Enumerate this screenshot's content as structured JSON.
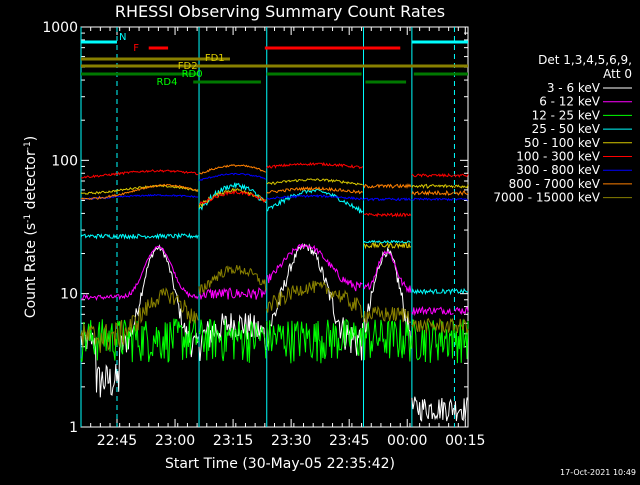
{
  "chart_data": {
    "type": "line",
    "title": "RHESSI Observing Summary Count Rates",
    "xlabel": "Start Time (30-May-05 22:35:42)",
    "ylabel_main": "Count Rate (s",
    "ylabel_sup1": "-1",
    "ylabel_mid": " detector",
    "ylabel_sup2": "-1",
    "ylabel_end": ")",
    "yscale": "log",
    "ylim": [
      1,
      1000
    ],
    "xlim_min": [
      0,
      100
    ],
    "x_unit": "minutes after 22:35:42",
    "x_ticks": [
      {
        "t": 9.3,
        "label": "22:45"
      },
      {
        "t": 24.3,
        "label": "23:00"
      },
      {
        "t": 39.3,
        "label": "23:15"
      },
      {
        "t": 54.3,
        "label": "23:30"
      },
      {
        "t": 69.3,
        "label": "23:45"
      },
      {
        "t": 84.3,
        "label": "00:00"
      },
      {
        "t": 99.3,
        "label": "00:15"
      }
    ],
    "y_ticks": [
      {
        "v": 1,
        "label": "1"
      },
      {
        "v": 10,
        "label": "10"
      },
      {
        "v": 100,
        "label": "100"
      },
      {
        "v": 1000,
        "label": "1000"
      }
    ],
    "legend_header": [
      "Det 1,3,4,5,6,9,",
      "Att 0"
    ],
    "series": [
      {
        "name": "3 - 6 keV",
        "color": "#ffffff",
        "label": "3 - 6 keV"
      },
      {
        "name": "6 - 12 keV",
        "color": "#ff00ff",
        "label": "6 - 12 keV"
      },
      {
        "name": "12 - 25 keV",
        "color": "#00ff00",
        "label": "12 - 25 keV"
      },
      {
        "name": "25 - 50 keV",
        "color": "#00ffff",
        "label": "25 - 50 keV"
      },
      {
        "name": "50 - 100 keV",
        "color": "#d8c800",
        "label": "50 - 100 keV"
      },
      {
        "name": "100 - 300 keV",
        "color": "#ff0000",
        "label": "100 - 300 keV"
      },
      {
        "name": "300 - 800 keV",
        "color": "#0000ff",
        "label": "300 - 800 keV"
      },
      {
        "name": "800 - 7000 keV",
        "color": "#ff8000",
        "label": "800 - 7000 keV"
      },
      {
        "name": "7000 - 15000 keV",
        "color": "#888000",
        "label": "7000 - 15000 keV"
      }
    ],
    "flags": [
      {
        "label": "N",
        "color": "#00ffff",
        "level": 0,
        "segments": [
          [
            0,
            9.3
          ],
          [
            85.5,
            100
          ]
        ]
      },
      {
        "label": "F",
        "color": "#ff0000",
        "level": 1,
        "segments": [
          [
            17.5,
            22.5
          ],
          [
            47.5,
            82.5
          ]
        ]
      },
      {
        "label": "FD1",
        "color": "#888000",
        "level": 2,
        "segments": [
          [
            0,
            38.5
          ]
        ]
      },
      {
        "label": "FD2",
        "color": "#888000",
        "level": 3,
        "segments": [
          [
            0,
            100
          ]
        ]
      },
      {
        "label": "RD0",
        "color": "#007800",
        "level": 4,
        "segments": [
          [
            0,
            30
          ],
          [
            48,
            72.5
          ],
          [
            86,
            100
          ]
        ]
      },
      {
        "label": "RD4",
        "color": "#007800",
        "level": 5,
        "segments": [
          [
            29,
            46.5
          ],
          [
            73.5,
            84
          ]
        ]
      }
    ],
    "night_times": [
      0,
      30.5,
      48,
      73,
      85.5
    ],
    "saa_times": [
      9.3,
      96.5
    ],
    "timestamp": "17-Oct-2021 10:49"
  }
}
